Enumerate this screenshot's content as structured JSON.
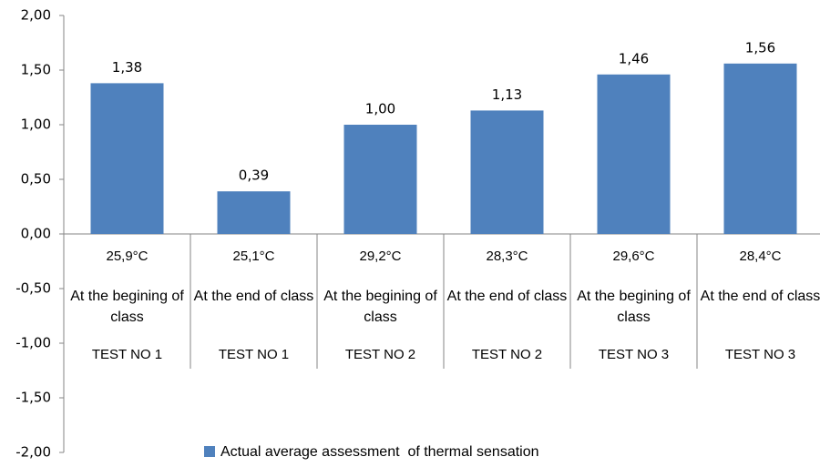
{
  "chart_data": {
    "type": "bar",
    "categories": [
      [
        "25,9°C",
        "At the begining of class",
        "TEST NO 1"
      ],
      [
        "25,1°C",
        "At the end of class",
        "TEST NO 1"
      ],
      [
        "29,2°C",
        "At the begining of class",
        "TEST NO 2"
      ],
      [
        "28,3°C",
        "At the end of class",
        "TEST NO 2"
      ],
      [
        "29,6°C",
        "At the begining of class",
        "TEST NO 3"
      ],
      [
        "28,4°C",
        "At the end of class",
        "TEST NO 3"
      ]
    ],
    "series": [
      {
        "name": "Actual average assessment  of thermal sensation",
        "color": "#4f81bd",
        "values": [
          1.38,
          0.39,
          1.0,
          1.13,
          1.46,
          1.56
        ],
        "value_labels": [
          "1,38",
          "0,39",
          "1,00",
          "1,13",
          "1,46",
          "1,56"
        ]
      }
    ],
    "ylim": [
      -2,
      2
    ],
    "yticks": [
      {
        "value": -2,
        "label": "-2,00"
      },
      {
        "value": -1.5,
        "label": "-1,50"
      },
      {
        "value": -1,
        "label": "-1,00"
      },
      {
        "value": -0.5,
        "label": "-0,50"
      },
      {
        "value": 0,
        "label": "0,00"
      },
      {
        "value": 0.5,
        "label": "0,50"
      },
      {
        "value": 1,
        "label": "1,00"
      },
      {
        "value": 1.5,
        "label": "1,50"
      },
      {
        "value": 2,
        "label": "2,00"
      }
    ],
    "grid": false,
    "legend": "bottom"
  }
}
